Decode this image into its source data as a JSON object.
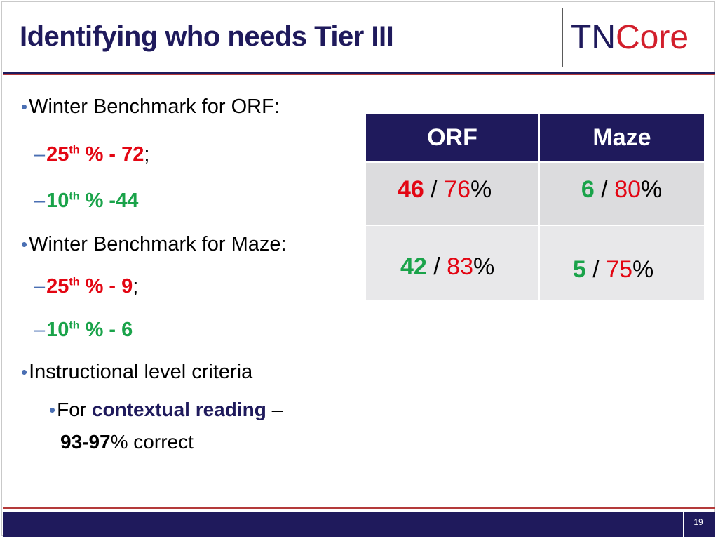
{
  "slide": {
    "title": "Identifying who needs Tier III",
    "page_number": "19"
  },
  "logo": {
    "tn": "TN",
    "core": "Core"
  },
  "bullets": {
    "orf_heading": "Winter Benchmark for ORF:",
    "orf_25_pre": "25",
    "orf_25_sup": "th",
    "orf_25_post": " % - 72",
    "orf_25_tail": ";",
    "orf_10_pre": "10",
    "orf_10_sup": "th",
    "orf_10_post": " % -44",
    "maze_heading": "Winter Benchmark for Maze:",
    "maze_25_pre": "25",
    "maze_25_sup": "th",
    "maze_25_post": " % - 9",
    "maze_25_tail": ";",
    "maze_10_pre": "10",
    "maze_10_sup": "th",
    "maze_10_post": " % - 6",
    "instr_heading": "Instructional level criteria",
    "sub_for": "For ",
    "sub_context": "contextual reading",
    "sub_dash": " –",
    "sub_range": "93-97",
    "sub_tail": "% correct"
  },
  "table": {
    "headers": [
      "ORF",
      "Maze"
    ],
    "rows": [
      {
        "orf": {
          "a": "46",
          "b": "76"
        },
        "maze": {
          "a": "6",
          "b": "80"
        }
      },
      {
        "orf": {
          "a": "42",
          "b": "83"
        },
        "maze": {
          "a": "5",
          "b": "75"
        }
      }
    ],
    "sep": " / ",
    "pct": "%"
  },
  "colors": {
    "navy": "#1f1a5c",
    "red": "#e30613",
    "green": "#1aa34a"
  }
}
